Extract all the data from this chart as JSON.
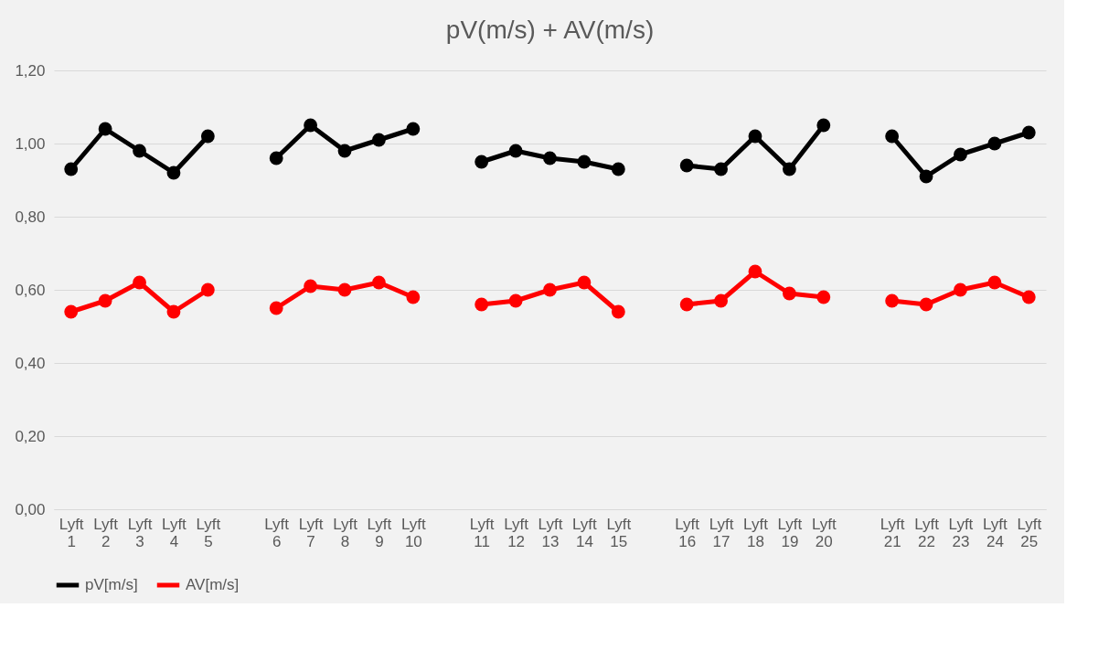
{
  "chart_data": {
    "type": "line",
    "title": "pV(m/s) + AV(m/s)",
    "categories": [
      "Lyft 1",
      "Lyft 2",
      "Lyft 3",
      "Lyft 4",
      "Lyft 5",
      null,
      "Lyft 6",
      "Lyft 7",
      "Lyft 8",
      "Lyft 9",
      "Lyft 10",
      null,
      "Lyft 11",
      "Lyft 12",
      "Lyft 13",
      "Lyft 14",
      "Lyft 15",
      null,
      "Lyft 16",
      "Lyft 17",
      "Lyft 18",
      "Lyft 19",
      "Lyft 20",
      null,
      "Lyft 21",
      "Lyft 22",
      "Lyft 23",
      "Lyft 24",
      "Lyft 25"
    ],
    "series": [
      {
        "name": "pV[m/s]",
        "color": "#000000",
        "values": [
          0.93,
          1.04,
          0.98,
          0.92,
          1.02,
          null,
          0.96,
          1.05,
          0.98,
          1.01,
          1.04,
          null,
          0.95,
          0.98,
          0.96,
          0.95,
          0.93,
          null,
          0.94,
          0.93,
          1.02,
          0.93,
          1.05,
          null,
          1.02,
          0.91,
          0.97,
          1.0,
          1.03
        ]
      },
      {
        "name": "AV[m/s]",
        "color": "#ff0000",
        "values": [
          0.54,
          0.57,
          0.62,
          0.54,
          0.6,
          null,
          0.55,
          0.61,
          0.6,
          0.62,
          0.58,
          null,
          0.56,
          0.57,
          0.6,
          0.62,
          0.54,
          null,
          0.56,
          0.57,
          0.65,
          0.59,
          0.58,
          null,
          0.57,
          0.56,
          0.6,
          0.62,
          0.58
        ]
      }
    ],
    "ylim": [
      0,
      1.2
    ],
    "yticks": [
      {
        "value": 0,
        "label": "0,00"
      },
      {
        "value": 0.2,
        "label": "0,20"
      },
      {
        "value": 0.4,
        "label": "0,40"
      },
      {
        "value": 0.6,
        "label": "0,60"
      },
      {
        "value": 0.8,
        "label": "0,80"
      },
      {
        "value": 1.0,
        "label": "1,00"
      },
      {
        "value": 1.2,
        "label": "1,20"
      }
    ],
    "grid": "y",
    "legend": "bottom",
    "marker": "circle",
    "line_style": "solid"
  }
}
